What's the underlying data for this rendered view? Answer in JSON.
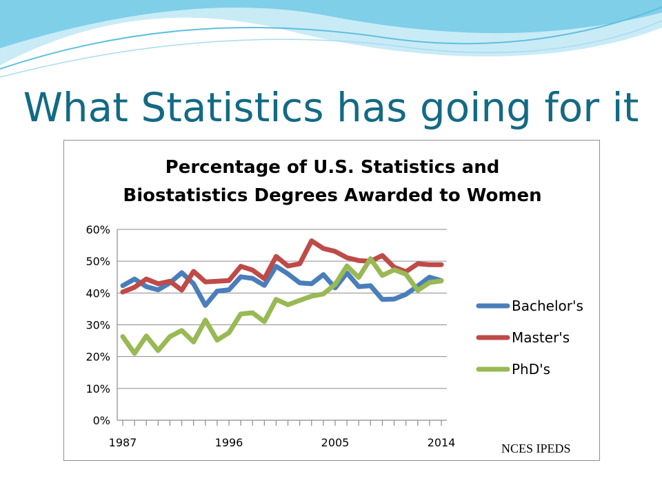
{
  "slide": {
    "title": "What Statistics has going for it",
    "source": "NCES IPEDS"
  },
  "colors": {
    "title": "#136a84",
    "bachelors": "#4a7ebb",
    "masters": "#be4b48",
    "phds": "#98b954",
    "wave_light": "#a8dbef",
    "wave_dark": "#5ebfe0"
  },
  "chart_data": {
    "type": "line",
    "title": [
      "Percentage of U.S. Statistics and",
      "Biostatistics Degrees Awarded to Women"
    ],
    "xlabel": "",
    "ylabel": "",
    "x": [
      1987,
      1988,
      1989,
      1990,
      1991,
      1992,
      1993,
      1994,
      1995,
      1996,
      1997,
      1998,
      1999,
      2000,
      2001,
      2002,
      2003,
      2004,
      2005,
      2006,
      2007,
      2008,
      2009,
      2010,
      2011,
      2012,
      2013,
      2014
    ],
    "x_tick_labels": [
      "1987",
      "1996",
      "2005",
      "2014"
    ],
    "x_tick_values": [
      1987,
      1996,
      2005,
      2014
    ],
    "ylim": [
      0,
      60
    ],
    "y_ticks": [
      0,
      10,
      20,
      30,
      40,
      50,
      60
    ],
    "y_tick_labels": [
      "0%",
      "10%",
      "20%",
      "30%",
      "40%",
      "50%",
      "60%"
    ],
    "grid": "horizontal",
    "legend_position": "right",
    "series": [
      {
        "name": "Bachelor's",
        "color": "#4a7ebb",
        "values": [
          42.3,
          44.4,
          42.0,
          41.0,
          43.2,
          46.4,
          42.9,
          36.1,
          40.6,
          41.0,
          45.1,
          44.6,
          42.4,
          48.4,
          46.0,
          43.2,
          42.9,
          45.8,
          41.6,
          46.3,
          42.0,
          42.3,
          38.0,
          38.1,
          39.6,
          42.2,
          45.0,
          43.9
        ]
      },
      {
        "name": "Master's",
        "color": "#be4b48",
        "values": [
          40.3,
          41.8,
          44.4,
          42.9,
          43.7,
          40.9,
          46.8,
          43.5,
          43.7,
          43.9,
          48.4,
          47.2,
          44.5,
          51.5,
          48.5,
          49.2,
          56.4,
          54.0,
          53.1,
          51.1,
          50.2,
          50.0,
          51.8,
          48.1,
          46.7,
          49.2,
          48.9,
          48.9
        ]
      },
      {
        "name": "PhD's",
        "color": "#98b954",
        "values": [
          26.3,
          21.0,
          26.5,
          21.9,
          26.3,
          28.2,
          24.6,
          31.5,
          25.2,
          27.5,
          33.4,
          33.8,
          31.0,
          38.0,
          36.3,
          37.7,
          39.0,
          39.7,
          42.7,
          48.5,
          44.9,
          50.8,
          45.5,
          47.3,
          45.9,
          40.8,
          43.3,
          43.8
        ]
      }
    ]
  }
}
